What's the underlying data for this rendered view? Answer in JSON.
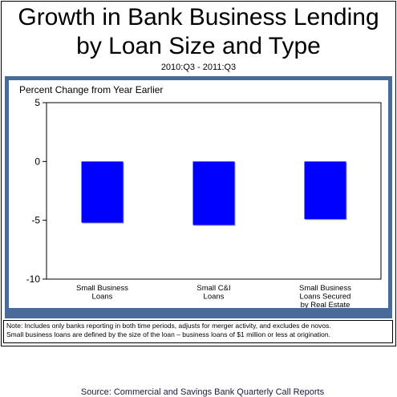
{
  "header": {
    "title_line1": "Growth in Bank Business Lending",
    "title_line2": "by Loan Size and Type",
    "subtitle": "2010:Q3 - 2011:Q3"
  },
  "chart_data": {
    "type": "bar",
    "categories": [
      [
        "Small Business",
        "Loans"
      ],
      [
        "Small C&I",
        "Loans"
      ],
      [
        "Small Business",
        "Loans Secured",
        "by Real Estate"
      ]
    ],
    "values": [
      -5.2,
      -5.4,
      -4.9
    ],
    "ylabel": "Percent Change from Year Earlier",
    "ylim": [
      -10,
      5
    ],
    "yticks": [
      "5",
      "0",
      "-5",
      "-10"
    ],
    "ytick_values": [
      5,
      0,
      -5,
      -10
    ],
    "bar_color": "#0000ff",
    "grid": false,
    "legend": "none"
  },
  "source": "Source:  Commercial and Savings Bank Quarterly Call Reports",
  "note": {
    "line1": "Note: Includes only banks reporting in both time periods, adjusts for merger activity, and excludes de novos.",
    "line2": "Small business loans are defined by the size of the loan – business loans of $1 million or less at origination."
  },
  "colors": {
    "panel_border": "#4a6a9a",
    "bars": "#0000ff"
  }
}
